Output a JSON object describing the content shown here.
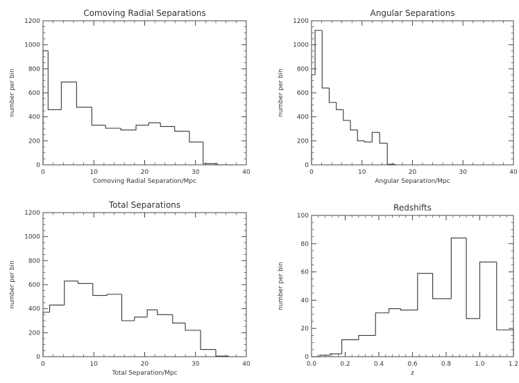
{
  "chart_data": [
    {
      "type": "histogram",
      "title": "Comoving Radial Separations",
      "xlabel": "Comoving Radial Separation/Mpc",
      "ylabel": "number per bin",
      "xlim": [
        0,
        40
      ],
      "ylim": [
        0,
        1200
      ],
      "xticks": [
        0,
        10,
        20,
        30,
        40
      ],
      "yticks": [
        0,
        200,
        400,
        600,
        800,
        1000,
        1200
      ],
      "tick_labels_x": [
        "0",
        "10",
        "20",
        "30",
        "40"
      ],
      "tick_labels_y": [
        "0",
        "200",
        "400",
        "600",
        "800",
        "1000",
        "1200"
      ],
      "bin_edges": [
        0,
        1,
        3.6,
        6.6,
        9.6,
        12.3,
        15.3,
        18.3,
        20.8,
        23.1,
        25.9,
        28.8,
        31.5,
        34.3,
        37.1
      ],
      "values": [
        950,
        460,
        690,
        480,
        330,
        305,
        290,
        330,
        350,
        320,
        280,
        190,
        10,
        0
      ]
    },
    {
      "type": "histogram",
      "title": "Angular Separations",
      "xlabel": "Angular Separation/Mpc",
      "ylabel": "number per bin",
      "xlim": [
        0,
        40
      ],
      "ylim": [
        0,
        1200
      ],
      "xticks": [
        0,
        10,
        20,
        30,
        40
      ],
      "yticks": [
        0,
        200,
        400,
        600,
        800,
        1000,
        1200
      ],
      "tick_labels_x": [
        "0",
        "10",
        "20",
        "30",
        "40"
      ],
      "tick_labels_y": [
        "0",
        "200",
        "400",
        "600",
        "800",
        "1000",
        "1200"
      ],
      "bin_edges": [
        0,
        0.7,
        2.1,
        3.5,
        4.9,
        6.3,
        7.7,
        9.1,
        10.5,
        12,
        13.5,
        15,
        16.5
      ],
      "values": [
        750,
        1120,
        640,
        520,
        460,
        370,
        290,
        200,
        190,
        270,
        180,
        5
      ]
    },
    {
      "type": "histogram",
      "title": "Total Separations",
      "xlabel": "Total Separation/Mpc",
      "ylabel": "number per bin",
      "xlim": [
        0,
        40
      ],
      "ylim": [
        0,
        1200
      ],
      "xticks": [
        0,
        10,
        20,
        30,
        40
      ],
      "yticks": [
        0,
        200,
        400,
        600,
        800,
        1000,
        1200
      ],
      "tick_labels_x": [
        "0",
        "10",
        "20",
        "30",
        "40"
      ],
      "tick_labels_y": [
        "0",
        "200",
        "400",
        "600",
        "800",
        "1000",
        "1200"
      ],
      "bin_edges": [
        0,
        1.3,
        4.2,
        6.9,
        9.8,
        12.6,
        15.5,
        18,
        20.5,
        22.5,
        25.5,
        28,
        31,
        34,
        36.5
      ],
      "values": [
        370,
        430,
        630,
        610,
        510,
        520,
        300,
        330,
        390,
        350,
        280,
        220,
        60,
        5
      ]
    },
    {
      "type": "histogram",
      "title": "Redshifts",
      "xlabel": "z",
      "ylabel": "number per bin",
      "xlim": [
        0,
        1.2
      ],
      "ylim": [
        0,
        100
      ],
      "xticks": [
        0,
        0.2,
        0.4,
        0.6,
        0.8,
        1.0,
        1.2
      ],
      "yticks": [
        0,
        20,
        40,
        60,
        80,
        100
      ],
      "tick_labels_x": [
        "0.0",
        "0.2",
        "0.4",
        "0.6",
        "0.8",
        "1.0",
        "1.2"
      ],
      "tick_labels_y": [
        "0",
        "20",
        "40",
        "60",
        "80",
        "100"
      ],
      "bin_edges": [
        0,
        0.05,
        0.11,
        0.18,
        0.28,
        0.38,
        0.46,
        0.53,
        0.63,
        0.72,
        0.83,
        0.92,
        1.0,
        1.1,
        1.2
      ],
      "values": [
        0,
        1,
        2,
        12,
        15,
        31,
        34,
        33,
        59,
        41,
        84,
        27,
        67,
        19
      ]
    }
  ]
}
